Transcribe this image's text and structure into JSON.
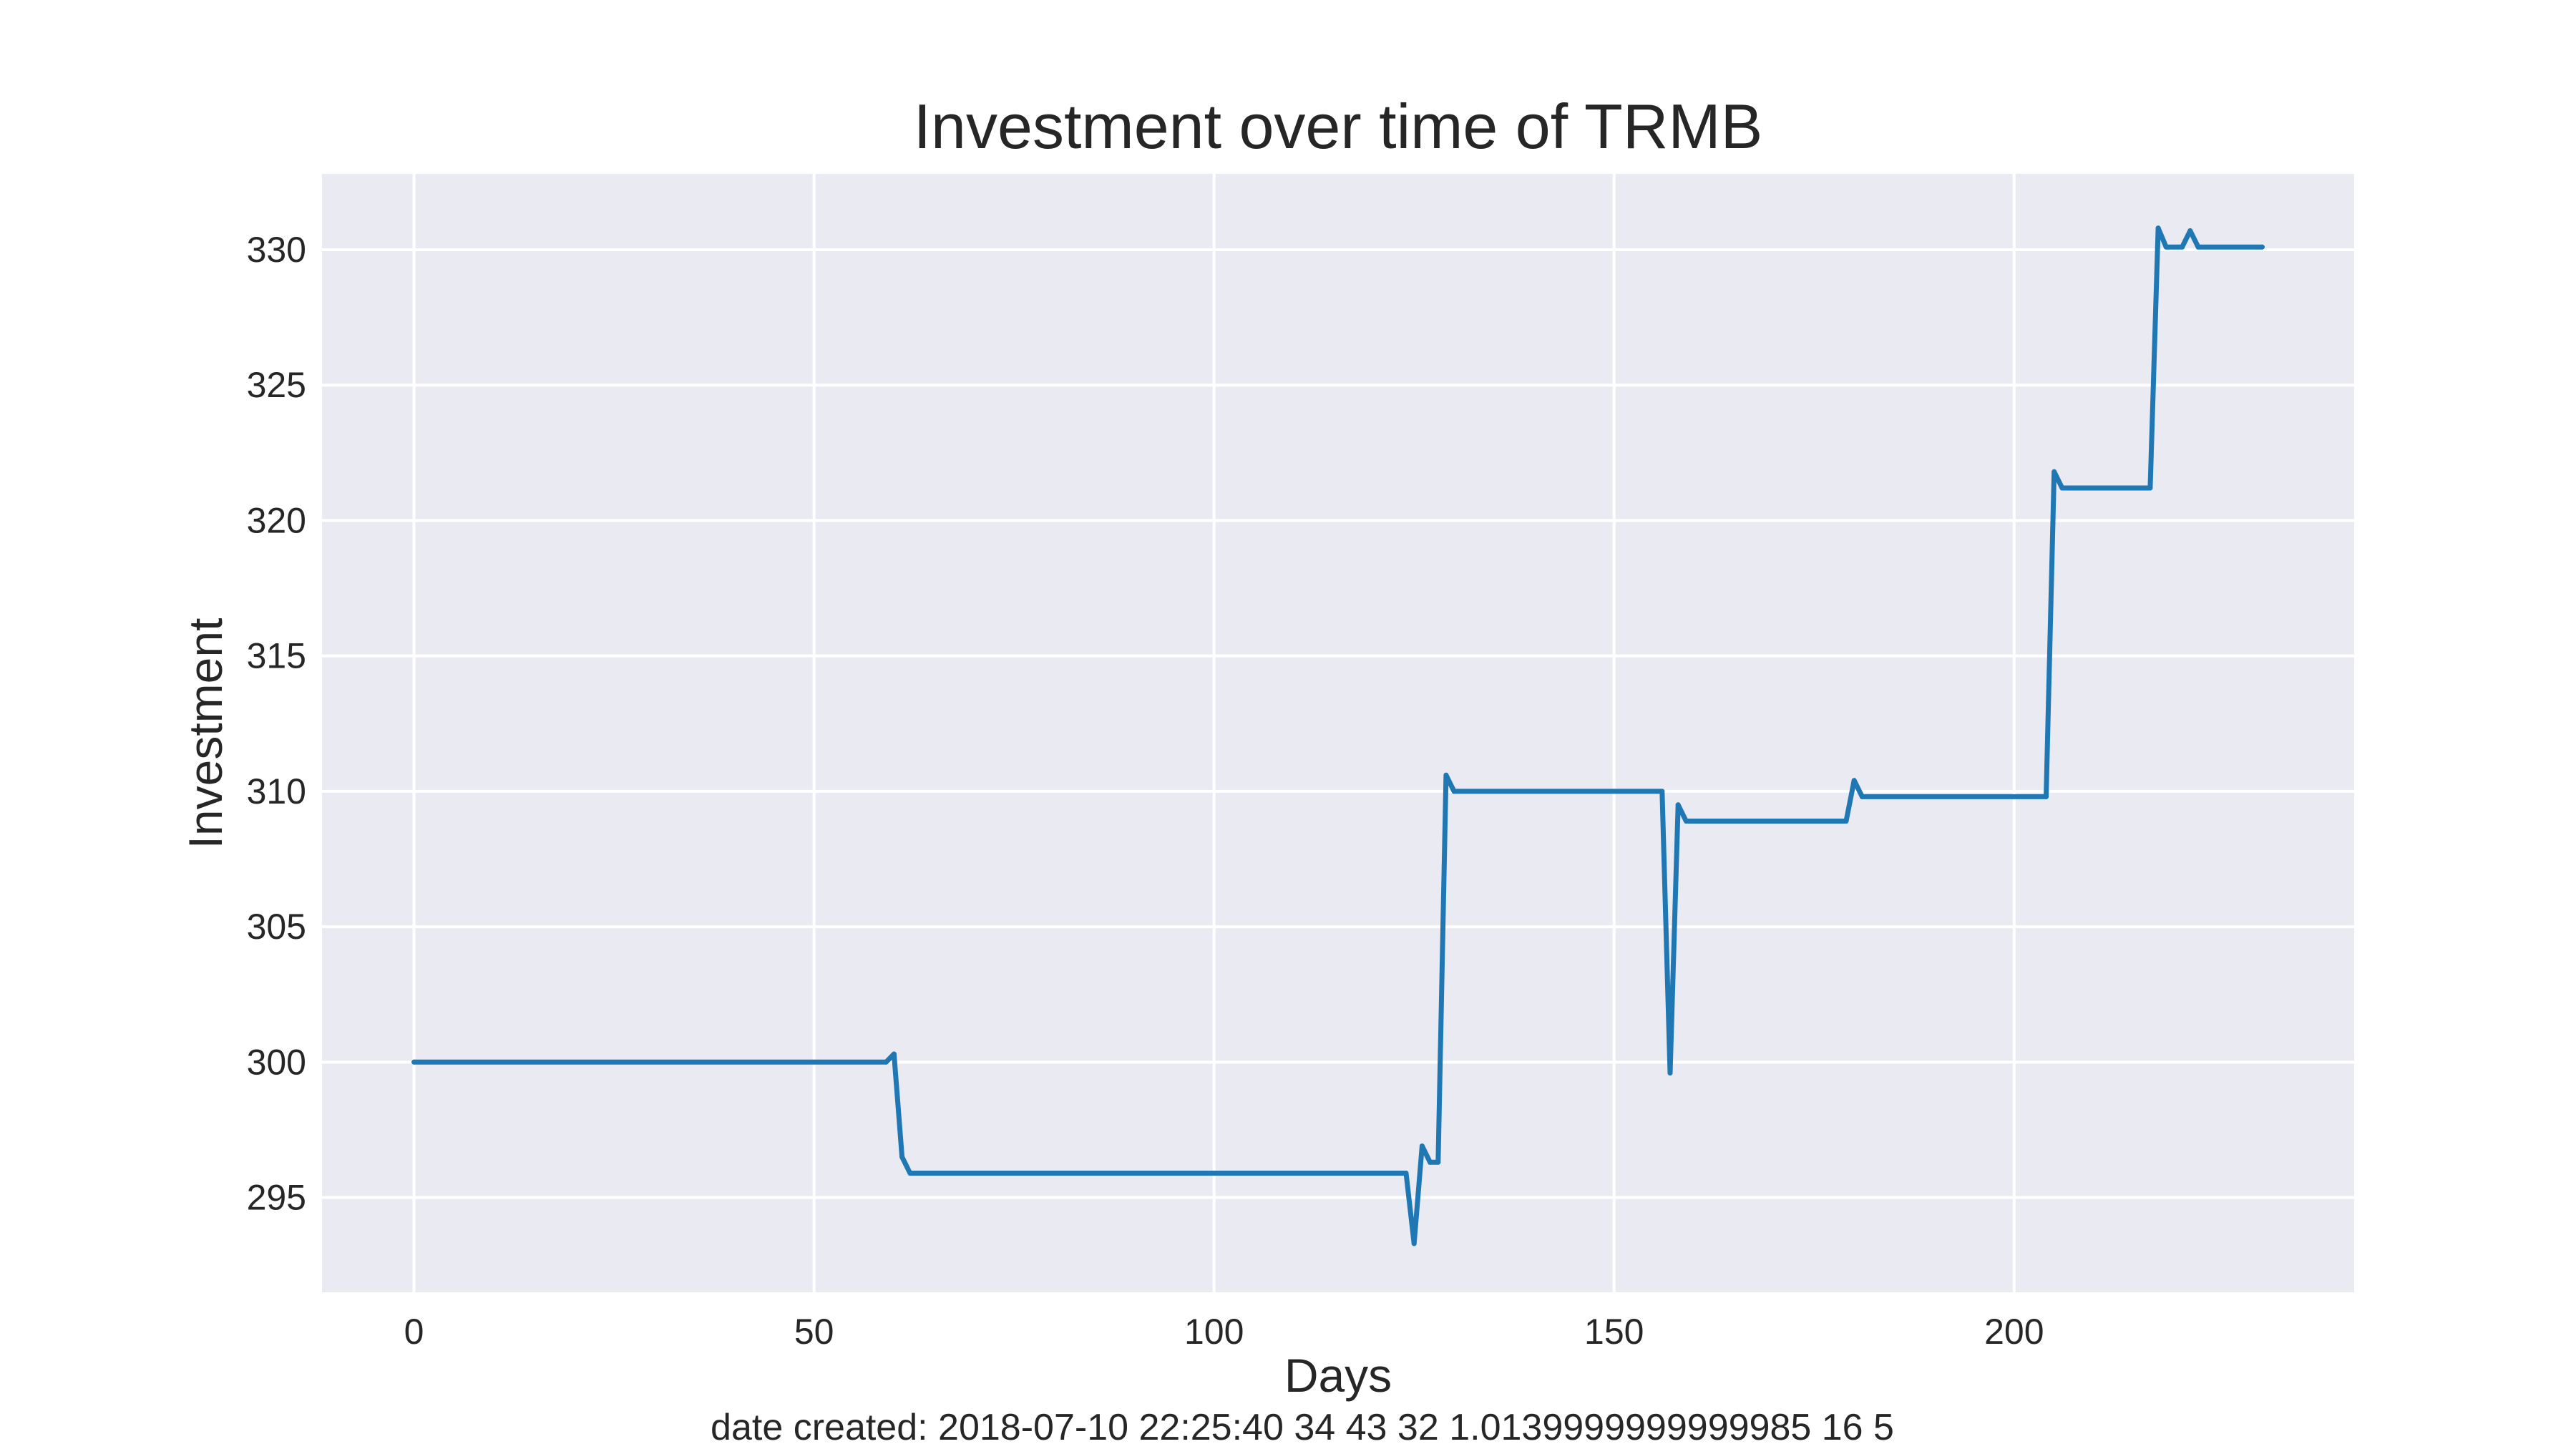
{
  "chart_data": {
    "type": "line",
    "title": "Investment over time of TRMB",
    "xlabel": "Days",
    "ylabel": "Investment",
    "xlim": [
      -11.5,
      242.5
    ],
    "ylim": [
      291.5,
      332.8
    ],
    "xticks": [
      0,
      50,
      100,
      150,
      200
    ],
    "yticks": [
      295,
      300,
      305,
      310,
      315,
      320,
      325,
      330
    ],
    "grid": true,
    "legend": "none",
    "colors": {
      "background": "#eaeaf2",
      "grid": "#ffffff",
      "line": "#1f77b4",
      "text": "#262626"
    },
    "series": [
      {
        "x": [
          0,
          59,
          60,
          61,
          62,
          124,
          125,
          126,
          127,
          128,
          129,
          130,
          156,
          157,
          158,
          159,
          179,
          180,
          181,
          204,
          205,
          206,
          217,
          218,
          219,
          221,
          222,
          223,
          231
        ],
        "y": [
          300.0,
          300.0,
          300.3,
          296.5,
          295.9,
          295.9,
          293.3,
          296.9,
          296.3,
          296.3,
          310.6,
          310.0,
          310.0,
          299.6,
          309.5,
          308.9,
          308.9,
          310.4,
          309.8,
          309.8,
          321.8,
          321.2,
          321.2,
          330.8,
          330.1,
          330.1,
          330.7,
          330.1,
          330.1
        ]
      }
    ]
  },
  "footer_text": "date created: 2018-07-10 22:25:40 34 43 32 1.0139999999999985 16 5"
}
